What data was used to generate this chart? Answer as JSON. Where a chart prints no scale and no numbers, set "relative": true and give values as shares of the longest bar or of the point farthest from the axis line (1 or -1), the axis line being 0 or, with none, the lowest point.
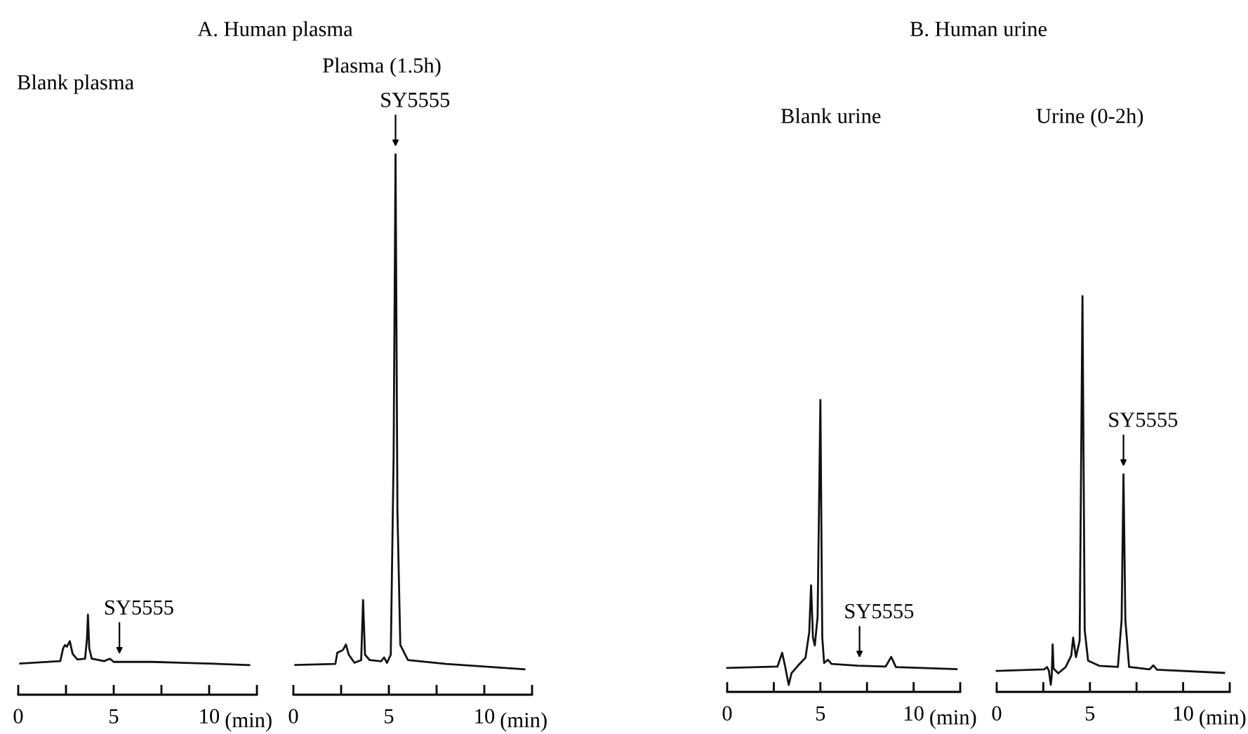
{
  "chart_data": [
    {
      "type": "line",
      "relative": true,
      "title": "A. Human plasma",
      "subtitle": "Blank plasma",
      "xlabel": "(min)",
      "xlim": [
        0,
        12.5
      ],
      "xticks": [
        0,
        {
          "value": 2.5,
          "label": null
        },
        5,
        {
          "value": 7.5,
          "label": null
        },
        10,
        {
          "value": 12.5,
          "label": null
        }
      ],
      "grid": false,
      "legend": false,
      "annotations": [
        {
          "text": "SY5555",
          "x": 5.3,
          "y": 0.41
        }
      ],
      "series": [
        {
          "color": "#111111",
          "x": [
            0.1,
            2.2,
            2.35,
            2.45,
            2.55,
            2.7,
            2.85,
            3.1,
            3.5,
            3.6,
            3.65,
            3.72,
            3.85,
            4.5,
            4.8,
            5.0,
            7,
            10,
            12.1
          ],
          "values": [
            0.39,
            0.42,
            0.58,
            0.62,
            0.6,
            0.67,
            0.51,
            0.44,
            0.45,
            0.7,
            1.0,
            0.58,
            0.45,
            0.42,
            0.45,
            0.41,
            0.41,
            0.39,
            0.37
          ]
        }
      ]
    },
    {
      "type": "line",
      "relative": true,
      "subtitle": "Plasma (1.5h)",
      "xlabel": "(min)",
      "xlim": [
        0,
        12.5
      ],
      "xticks": [
        0,
        {
          "value": 2.5,
          "label": null
        },
        5,
        {
          "value": 7.5,
          "label": null
        },
        10,
        {
          "value": 12.5,
          "label": null
        }
      ],
      "grid": false,
      "legend": false,
      "annotations": [
        {
          "text": "SY5555",
          "x": 5.35,
          "y": 1.0
        }
      ],
      "series": [
        {
          "color": "#111111",
          "x": [
            0.1,
            2.2,
            2.3,
            2.45,
            2.6,
            2.75,
            2.9,
            3.2,
            3.55,
            3.65,
            3.75,
            4.0,
            4.6,
            4.75,
            4.9,
            5.1,
            5.25,
            5.35,
            5.45,
            5.6,
            6,
            8,
            12.1
          ],
          "values": [
            0.055,
            0.057,
            0.078,
            0.08,
            0.083,
            0.093,
            0.074,
            0.059,
            0.064,
            0.175,
            0.074,
            0.064,
            0.062,
            0.069,
            0.059,
            0.074,
            0.442,
            1.0,
            0.338,
            0.092,
            0.064,
            0.057,
            0.047
          ]
        }
      ]
    },
    {
      "type": "line",
      "relative": true,
      "title": "B. Human urine",
      "subtitle": "Blank urine",
      "xlabel": "(min)",
      "xlim": [
        0,
        12.5
      ],
      "xticks": [
        0,
        {
          "value": 2.5,
          "label": null
        },
        5,
        {
          "value": 7.5,
          "label": null
        },
        10,
        {
          "value": 12.5,
          "label": null
        }
      ],
      "grid": false,
      "legend": false,
      "annotations": [
        {
          "text": "SY5555",
          "x": 7.1,
          "y": 0.09
        }
      ],
      "series": [
        {
          "color": "#111111",
          "x": [
            0,
            2.7,
            2.95,
            3.1,
            3.3,
            3.45,
            3.8,
            4.2,
            4.4,
            4.5,
            4.6,
            4.7,
            4.85,
            5.0,
            5.1,
            5.2,
            5.4,
            5.6,
            7,
            8.5,
            8.8,
            9.05,
            12.3
          ],
          "values": [
            0.082,
            0.087,
            0.134,
            0.09,
            0.024,
            0.064,
            0.09,
            0.117,
            0.204,
            0.365,
            0.187,
            0.159,
            0.257,
            1.0,
            0.187,
            0.099,
            0.11,
            0.096,
            0.09,
            0.087,
            0.12,
            0.085,
            0.078
          ]
        }
      ]
    },
    {
      "type": "line",
      "relative": true,
      "subtitle": "Urine (0-2h)",
      "xlabel": "(min)",
      "xlim": [
        0,
        12.5
      ],
      "xticks": [
        0,
        {
          "value": 2.5,
          "label": null
        },
        5,
        {
          "value": 7.5,
          "label": null
        },
        10,
        {
          "value": 12.5,
          "label": null
        }
      ],
      "grid": false,
      "legend": false,
      "annotations": [
        {
          "text": "SY5555",
          "x": 6.8,
          "y": 0.55
        }
      ],
      "series": [
        {
          "color": "#111111",
          "x": [
            0,
            2.55,
            2.7,
            2.8,
            2.9,
            2.95,
            3.0,
            3.05,
            3.3,
            3.7,
            4.0,
            4.1,
            4.25,
            4.45,
            4.6,
            4.72,
            4.9,
            5.5,
            6.5,
            6.7,
            6.8,
            6.9,
            7.1,
            8.2,
            8.4,
            8.6,
            12.2
          ],
          "values": [
            0.053,
            0.057,
            0.063,
            0.053,
            0.018,
            0.04,
            0.12,
            0.059,
            0.047,
            0.063,
            0.092,
            0.137,
            0.088,
            0.13,
            1.0,
            0.156,
            0.079,
            0.066,
            0.063,
            0.182,
            0.55,
            0.182,
            0.063,
            0.057,
            0.067,
            0.056,
            0.048
          ]
        }
      ]
    }
  ]
}
